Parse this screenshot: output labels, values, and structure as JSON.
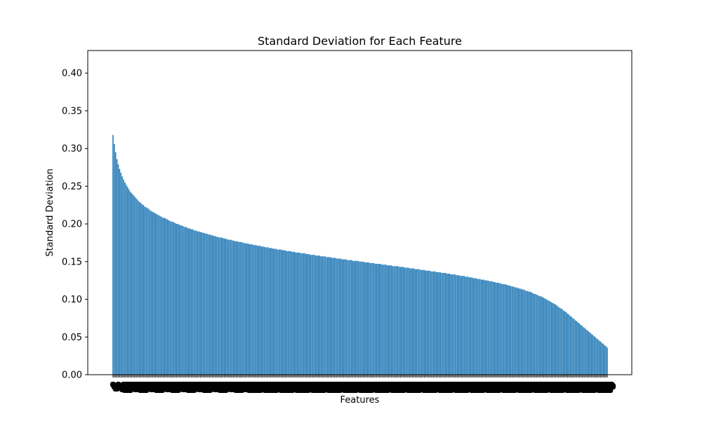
{
  "chart_data": {
    "type": "bar",
    "title": "Standard Deviation for Each Feature",
    "xlabel": "Features",
    "ylabel": "Standard Deviation",
    "ylim": [
      0,
      0.43
    ],
    "yticks": [
      "0.00",
      "0.05",
      "0.10",
      "0.15",
      "0.20",
      "0.25",
      "0.30",
      "0.35",
      "0.40"
    ],
    "grid": false,
    "legend": "none",
    "bar_color": "#1f77b4",
    "x_tick_labels": "overlapping and illegible",
    "sorted": "descending",
    "approx_feature_count": 400,
    "values": [
      0.318,
      0.306,
      0.295,
      0.286,
      0.279,
      0.273,
      0.268,
      0.263,
      0.259,
      0.255,
      0.252,
      0.249,
      0.246,
      0.243,
      0.241,
      0.239,
      0.237,
      0.235,
      0.233,
      0.231,
      0.229,
      0.228,
      0.226,
      0.225,
      0.223,
      0.222,
      0.221,
      0.22,
      0.218,
      0.217,
      0.216,
      0.215,
      0.214,
      0.213,
      0.212,
      0.211,
      0.21,
      0.209,
      0.208,
      0.208,
      0.207,
      0.206,
      0.205,
      0.204,
      0.203,
      0.203,
      0.202,
      0.201,
      0.2,
      0.2,
      0.199,
      0.198,
      0.198,
      0.197,
      0.196,
      0.196,
      0.195,
      0.194,
      0.194,
      0.193,
      0.193,
      0.192,
      0.191,
      0.191,
      0.19,
      0.19,
      0.189,
      0.189,
      0.188,
      0.188,
      0.187,
      0.187,
      0.186,
      0.186,
      0.185,
      0.185,
      0.184,
      0.184,
      0.183,
      0.183,
      0.182,
      0.182,
      0.182,
      0.181,
      0.181,
      0.18,
      0.18,
      0.179,
      0.179,
      0.179,
      0.178,
      0.178,
      0.177,
      0.177,
      0.177,
      0.176,
      0.176,
      0.176,
      0.175,
      0.175,
      0.174,
      0.174,
      0.174,
      0.173,
      0.173,
      0.173,
      0.172,
      0.172,
      0.172,
      0.171,
      0.171,
      0.171,
      0.17,
      0.17,
      0.17,
      0.169,
      0.169,
      0.169,
      0.168,
      0.168,
      0.168,
      0.167,
      0.167,
      0.167,
      0.166,
      0.166,
      0.166,
      0.166,
      0.165,
      0.165,
      0.165,
      0.164,
      0.164,
      0.164,
      0.164,
      0.163,
      0.163,
      0.163,
      0.162,
      0.162,
      0.162,
      0.162,
      0.161,
      0.161,
      0.161,
      0.161,
      0.16,
      0.16,
      0.16,
      0.159,
      0.159,
      0.159,
      0.159,
      0.158,
      0.158,
      0.158,
      0.158,
      0.157,
      0.157,
      0.157,
      0.157,
      0.156,
      0.156,
      0.156,
      0.156,
      0.155,
      0.155,
      0.155,
      0.155,
      0.154,
      0.154,
      0.154,
      0.154,
      0.153,
      0.153,
      0.153,
      0.153,
      0.152,
      0.152,
      0.152,
      0.152,
      0.151,
      0.151,
      0.151,
      0.151,
      0.151,
      0.15,
      0.15,
      0.15,
      0.15,
      0.149,
      0.149,
      0.149,
      0.149,
      0.148,
      0.148,
      0.148,
      0.148,
      0.147,
      0.147,
      0.147,
      0.147,
      0.147,
      0.146,
      0.146,
      0.146,
      0.146,
      0.145,
      0.145,
      0.145,
      0.145,
      0.144,
      0.144,
      0.144,
      0.144,
      0.144,
      0.143,
      0.143,
      0.143,
      0.143,
      0.142,
      0.142,
      0.142,
      0.142,
      0.141,
      0.141,
      0.141,
      0.141,
      0.14,
      0.14,
      0.14,
      0.14,
      0.139,
      0.139,
      0.139,
      0.139,
      0.138,
      0.138,
      0.138,
      0.138,
      0.137,
      0.137,
      0.137,
      0.137,
      0.136,
      0.136,
      0.136,
      0.136,
      0.135,
      0.135,
      0.135,
      0.135,
      0.134,
      0.134,
      0.134,
      0.133,
      0.133,
      0.133,
      0.133,
      0.132,
      0.132,
      0.132,
      0.131,
      0.131,
      0.131,
      0.131,
      0.13,
      0.13,
      0.13,
      0.129,
      0.129,
      0.129,
      0.128,
      0.128,
      0.128,
      0.127,
      0.127,
      0.127,
      0.126,
      0.126,
      0.126,
      0.125,
      0.125,
      0.125,
      0.124,
      0.124,
      0.124,
      0.123,
      0.123,
      0.122,
      0.122,
      0.122,
      0.121,
      0.121,
      0.12,
      0.12,
      0.12,
      0.119,
      0.119,
      0.118,
      0.118,
      0.117,
      0.117,
      0.116,
      0.116,
      0.115,
      0.115,
      0.114,
      0.114,
      0.113,
      0.113,
      0.112,
      0.111,
      0.111,
      0.11,
      0.11,
      0.109,
      0.108,
      0.107,
      0.107,
      0.106,
      0.105,
      0.104,
      0.104,
      0.103,
      0.102,
      0.101,
      0.1,
      0.099,
      0.098,
      0.097,
      0.096,
      0.095,
      0.094,
      0.093,
      0.092,
      0.09,
      0.089,
      0.088,
      0.087,
      0.085,
      0.084,
      0.083,
      0.081,
      0.08,
      0.078,
      0.077,
      0.075,
      0.074,
      0.072,
      0.071,
      0.069,
      0.068,
      0.066,
      0.065,
      0.063,
      0.062,
      0.06,
      0.059,
      0.057,
      0.056,
      0.054,
      0.053,
      0.051,
      0.05,
      0.048,
      0.047,
      0.045,
      0.044,
      0.042,
      0.041,
      0.039,
      0.038,
      0.036
    ]
  }
}
